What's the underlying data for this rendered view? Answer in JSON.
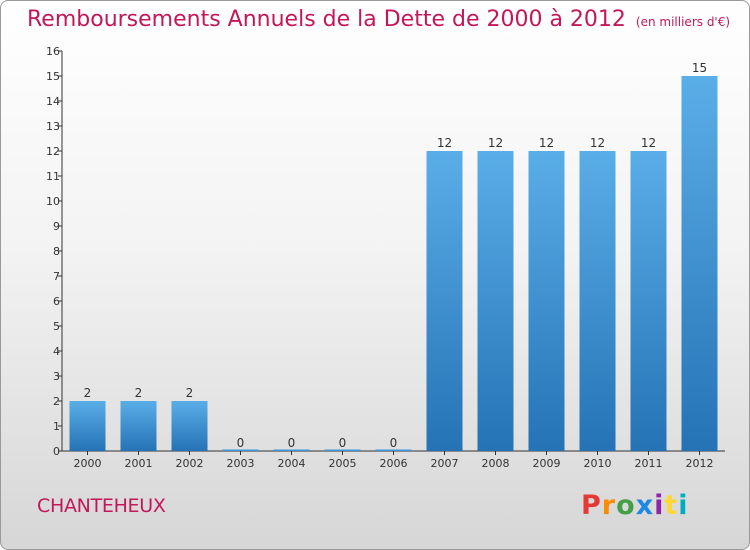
{
  "title": "Remboursements Annuels de la Dette de 2000 à 2012",
  "unit": "(en milliers d'€)",
  "commune": "CHANTEHEUX",
  "logo": {
    "p": "P",
    "r": "r",
    "o": "o",
    "x": "x",
    "i": "i",
    "t": "t",
    "i2": "i"
  },
  "colors": {
    "bar": "#3d96d9",
    "title": "#c2185b",
    "axis": "#333333"
  },
  "chart_data": {
    "type": "bar",
    "title": "Remboursements Annuels de la Dette de 2000 à 2012",
    "subtitle": "(en milliers d'€)",
    "categories": [
      "2000",
      "2001",
      "2002",
      "2003",
      "2004",
      "2005",
      "2006",
      "2007",
      "2008",
      "2009",
      "2010",
      "2011",
      "2012"
    ],
    "values": [
      2,
      2,
      2,
      0,
      0,
      0,
      0,
      12,
      12,
      12,
      12,
      12,
      15
    ],
    "ylim": [
      0,
      16
    ],
    "yticks": [
      0,
      1,
      2,
      3,
      4,
      5,
      6,
      7,
      8,
      9,
      10,
      11,
      12,
      13,
      14,
      15,
      16
    ],
    "grid": false,
    "xlabel": "",
    "ylabel": ""
  }
}
